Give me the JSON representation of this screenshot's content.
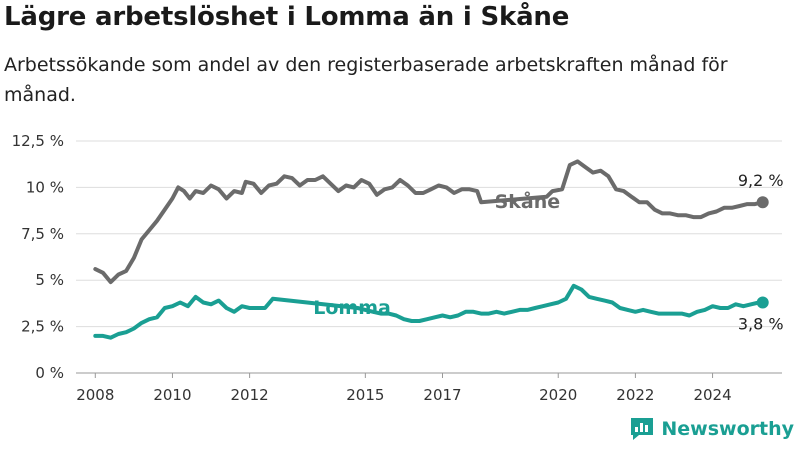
{
  "title": "Lägre arbetslöshet i Lomma än i Skåne",
  "subtitle": "Arbetssökande som andel av den registerbaserade arbetskraften månad för månad.",
  "brand": "Newsworthy",
  "colors": {
    "skane": "#6b6b6b",
    "lomma": "#1a9f93",
    "grid": "#dddddd",
    "text": "#333333"
  },
  "chart_data": {
    "type": "line",
    "ylim": [
      0,
      12.5
    ],
    "y_ticks": [
      {
        "value": 0,
        "label": "0 %"
      },
      {
        "value": 2.5,
        "label": "2,5 %"
      },
      {
        "value": 5,
        "label": "5 %"
      },
      {
        "value": 7.5,
        "label": "7,5 %"
      },
      {
        "value": 10,
        "label": "10 %"
      },
      {
        "value": 12.5,
        "label": "12,5 %"
      }
    ],
    "x_ticks": [
      {
        "value": 2008,
        "label": "2008"
      },
      {
        "value": 2010,
        "label": "2010"
      },
      {
        "value": 2012,
        "label": "2012"
      },
      {
        "value": 2015,
        "label": "2015"
      },
      {
        "value": 2017,
        "label": "2017"
      },
      {
        "value": 2020,
        "label": "2020"
      },
      {
        "value": 2022,
        "label": "2022"
      },
      {
        "value": 2024,
        "label": "2024"
      }
    ],
    "xlim": [
      2007.5,
      2025.8
    ],
    "series": [
      {
        "name": "Skåne",
        "color": "#6b6b6b",
        "end_label": "9,2 %",
        "points": [
          [
            2008.0,
            5.6
          ],
          [
            2008.2,
            5.4
          ],
          [
            2008.4,
            4.9
          ],
          [
            2008.6,
            5.3
          ],
          [
            2008.8,
            5.5
          ],
          [
            2009.0,
            6.2
          ],
          [
            2009.2,
            7.2
          ],
          [
            2009.4,
            7.7
          ],
          [
            2009.6,
            8.2
          ],
          [
            2009.8,
            8.8
          ],
          [
            2010.0,
            9.4
          ],
          [
            2010.15,
            10.0
          ],
          [
            2010.3,
            9.8
          ],
          [
            2010.45,
            9.4
          ],
          [
            2010.6,
            9.8
          ],
          [
            2010.8,
            9.7
          ],
          [
            2011.0,
            10.1
          ],
          [
            2011.2,
            9.9
          ],
          [
            2011.4,
            9.4
          ],
          [
            2011.6,
            9.8
          ],
          [
            2011.8,
            9.7
          ],
          [
            2011.9,
            10.3
          ],
          [
            2012.1,
            10.2
          ],
          [
            2012.3,
            9.7
          ],
          [
            2012.5,
            10.1
          ],
          [
            2012.7,
            10.2
          ],
          [
            2012.9,
            10.6
          ],
          [
            2013.1,
            10.5
          ],
          [
            2013.3,
            10.1
          ],
          [
            2013.5,
            10.4
          ],
          [
            2013.7,
            10.4
          ],
          [
            2013.9,
            10.6
          ],
          [
            2014.1,
            10.2
          ],
          [
            2014.3,
            9.8
          ],
          [
            2014.5,
            10.1
          ],
          [
            2014.7,
            10.0
          ],
          [
            2014.9,
            10.4
          ],
          [
            2015.1,
            10.2
          ],
          [
            2015.3,
            9.6
          ],
          [
            2015.5,
            9.9
          ],
          [
            2015.7,
            10.0
          ],
          [
            2015.9,
            10.4
          ],
          [
            2016.1,
            10.1
          ],
          [
            2016.3,
            9.7
          ],
          [
            2016.5,
            9.7
          ],
          [
            2016.7,
            9.9
          ],
          [
            2016.9,
            10.1
          ],
          [
            2017.1,
            10.0
          ],
          [
            2017.3,
            9.7
          ],
          [
            2017.5,
            9.9
          ],
          [
            2017.7,
            9.9
          ],
          [
            2017.9,
            9.8
          ],
          [
            2018.0,
            9.2
          ],
          [
            2019.7,
            9.5
          ],
          [
            2019.85,
            9.8
          ],
          [
            2020.1,
            9.9
          ],
          [
            2020.3,
            11.2
          ],
          [
            2020.5,
            11.4
          ],
          [
            2020.7,
            11.1
          ],
          [
            2020.9,
            10.8
          ],
          [
            2021.1,
            10.9
          ],
          [
            2021.3,
            10.6
          ],
          [
            2021.5,
            9.9
          ],
          [
            2021.7,
            9.8
          ],
          [
            2021.9,
            9.5
          ],
          [
            2022.1,
            9.2
          ],
          [
            2022.3,
            9.2
          ],
          [
            2022.5,
            8.8
          ],
          [
            2022.7,
            8.6
          ],
          [
            2022.9,
            8.6
          ],
          [
            2023.1,
            8.5
          ],
          [
            2023.3,
            8.5
          ],
          [
            2023.5,
            8.4
          ],
          [
            2023.7,
            8.4
          ],
          [
            2023.9,
            8.6
          ],
          [
            2024.1,
            8.7
          ],
          [
            2024.3,
            8.9
          ],
          [
            2024.5,
            8.9
          ],
          [
            2024.7,
            9.0
          ],
          [
            2024.9,
            9.1
          ],
          [
            2025.1,
            9.1
          ],
          [
            2025.3,
            9.2
          ]
        ]
      },
      {
        "name": "Lomma",
        "color": "#1a9f93",
        "end_label": "3,8 %",
        "points": [
          [
            2008.0,
            2.0
          ],
          [
            2008.2,
            2.0
          ],
          [
            2008.4,
            1.9
          ],
          [
            2008.6,
            2.1
          ],
          [
            2008.8,
            2.2
          ],
          [
            2009.0,
            2.4
          ],
          [
            2009.2,
            2.7
          ],
          [
            2009.4,
            2.9
          ],
          [
            2009.6,
            3.0
          ],
          [
            2009.8,
            3.5
          ],
          [
            2010.0,
            3.6
          ],
          [
            2010.2,
            3.8
          ],
          [
            2010.4,
            3.6
          ],
          [
            2010.6,
            4.1
          ],
          [
            2010.8,
            3.8
          ],
          [
            2011.0,
            3.7
          ],
          [
            2011.2,
            3.9
          ],
          [
            2011.4,
            3.5
          ],
          [
            2011.6,
            3.3
          ],
          [
            2011.8,
            3.6
          ],
          [
            2012.0,
            3.5
          ],
          [
            2012.2,
            3.5
          ],
          [
            2012.4,
            3.5
          ],
          [
            2012.6,
            4.0
          ],
          [
            2014.8,
            3.5
          ],
          [
            2015.0,
            3.4
          ],
          [
            2015.2,
            3.3
          ],
          [
            2015.4,
            3.2
          ],
          [
            2015.6,
            3.2
          ],
          [
            2015.8,
            3.1
          ],
          [
            2016.0,
            2.9
          ],
          [
            2016.2,
            2.8
          ],
          [
            2016.4,
            2.8
          ],
          [
            2016.6,
            2.9
          ],
          [
            2016.8,
            3.0
          ],
          [
            2017.0,
            3.1
          ],
          [
            2017.2,
            3.0
          ],
          [
            2017.4,
            3.1
          ],
          [
            2017.6,
            3.3
          ],
          [
            2017.8,
            3.3
          ],
          [
            2018.0,
            3.2
          ],
          [
            2018.2,
            3.2
          ],
          [
            2018.4,
            3.3
          ],
          [
            2018.6,
            3.2
          ],
          [
            2018.8,
            3.3
          ],
          [
            2019.0,
            3.4
          ],
          [
            2019.2,
            3.4
          ],
          [
            2019.4,
            3.5
          ],
          [
            2019.6,
            3.6
          ],
          [
            2019.8,
            3.7
          ],
          [
            2020.0,
            3.8
          ],
          [
            2020.2,
            4.0
          ],
          [
            2020.4,
            4.7
          ],
          [
            2020.6,
            4.5
          ],
          [
            2020.8,
            4.1
          ],
          [
            2021.0,
            4.0
          ],
          [
            2021.2,
            3.9
          ],
          [
            2021.4,
            3.8
          ],
          [
            2021.6,
            3.5
          ],
          [
            2021.8,
            3.4
          ],
          [
            2022.0,
            3.3
          ],
          [
            2022.2,
            3.4
          ],
          [
            2022.4,
            3.3
          ],
          [
            2022.6,
            3.2
          ],
          [
            2022.8,
            3.2
          ],
          [
            2023.0,
            3.2
          ],
          [
            2023.2,
            3.2
          ],
          [
            2023.4,
            3.1
          ],
          [
            2023.6,
            3.3
          ],
          [
            2023.8,
            3.4
          ],
          [
            2024.0,
            3.6
          ],
          [
            2024.2,
            3.5
          ],
          [
            2024.4,
            3.5
          ],
          [
            2024.6,
            3.7
          ],
          [
            2024.8,
            3.6
          ],
          [
            2025.0,
            3.7
          ],
          [
            2025.2,
            3.8
          ],
          [
            2025.3,
            3.8
          ]
        ]
      }
    ],
    "inline_labels": [
      {
        "series": "Skåne",
        "text": "Skåne",
        "x": 2018.35,
        "y": 9.2
      },
      {
        "series": "Lomma",
        "text": "Lomma",
        "x": 2013.65,
        "y": 3.5
      }
    ]
  }
}
